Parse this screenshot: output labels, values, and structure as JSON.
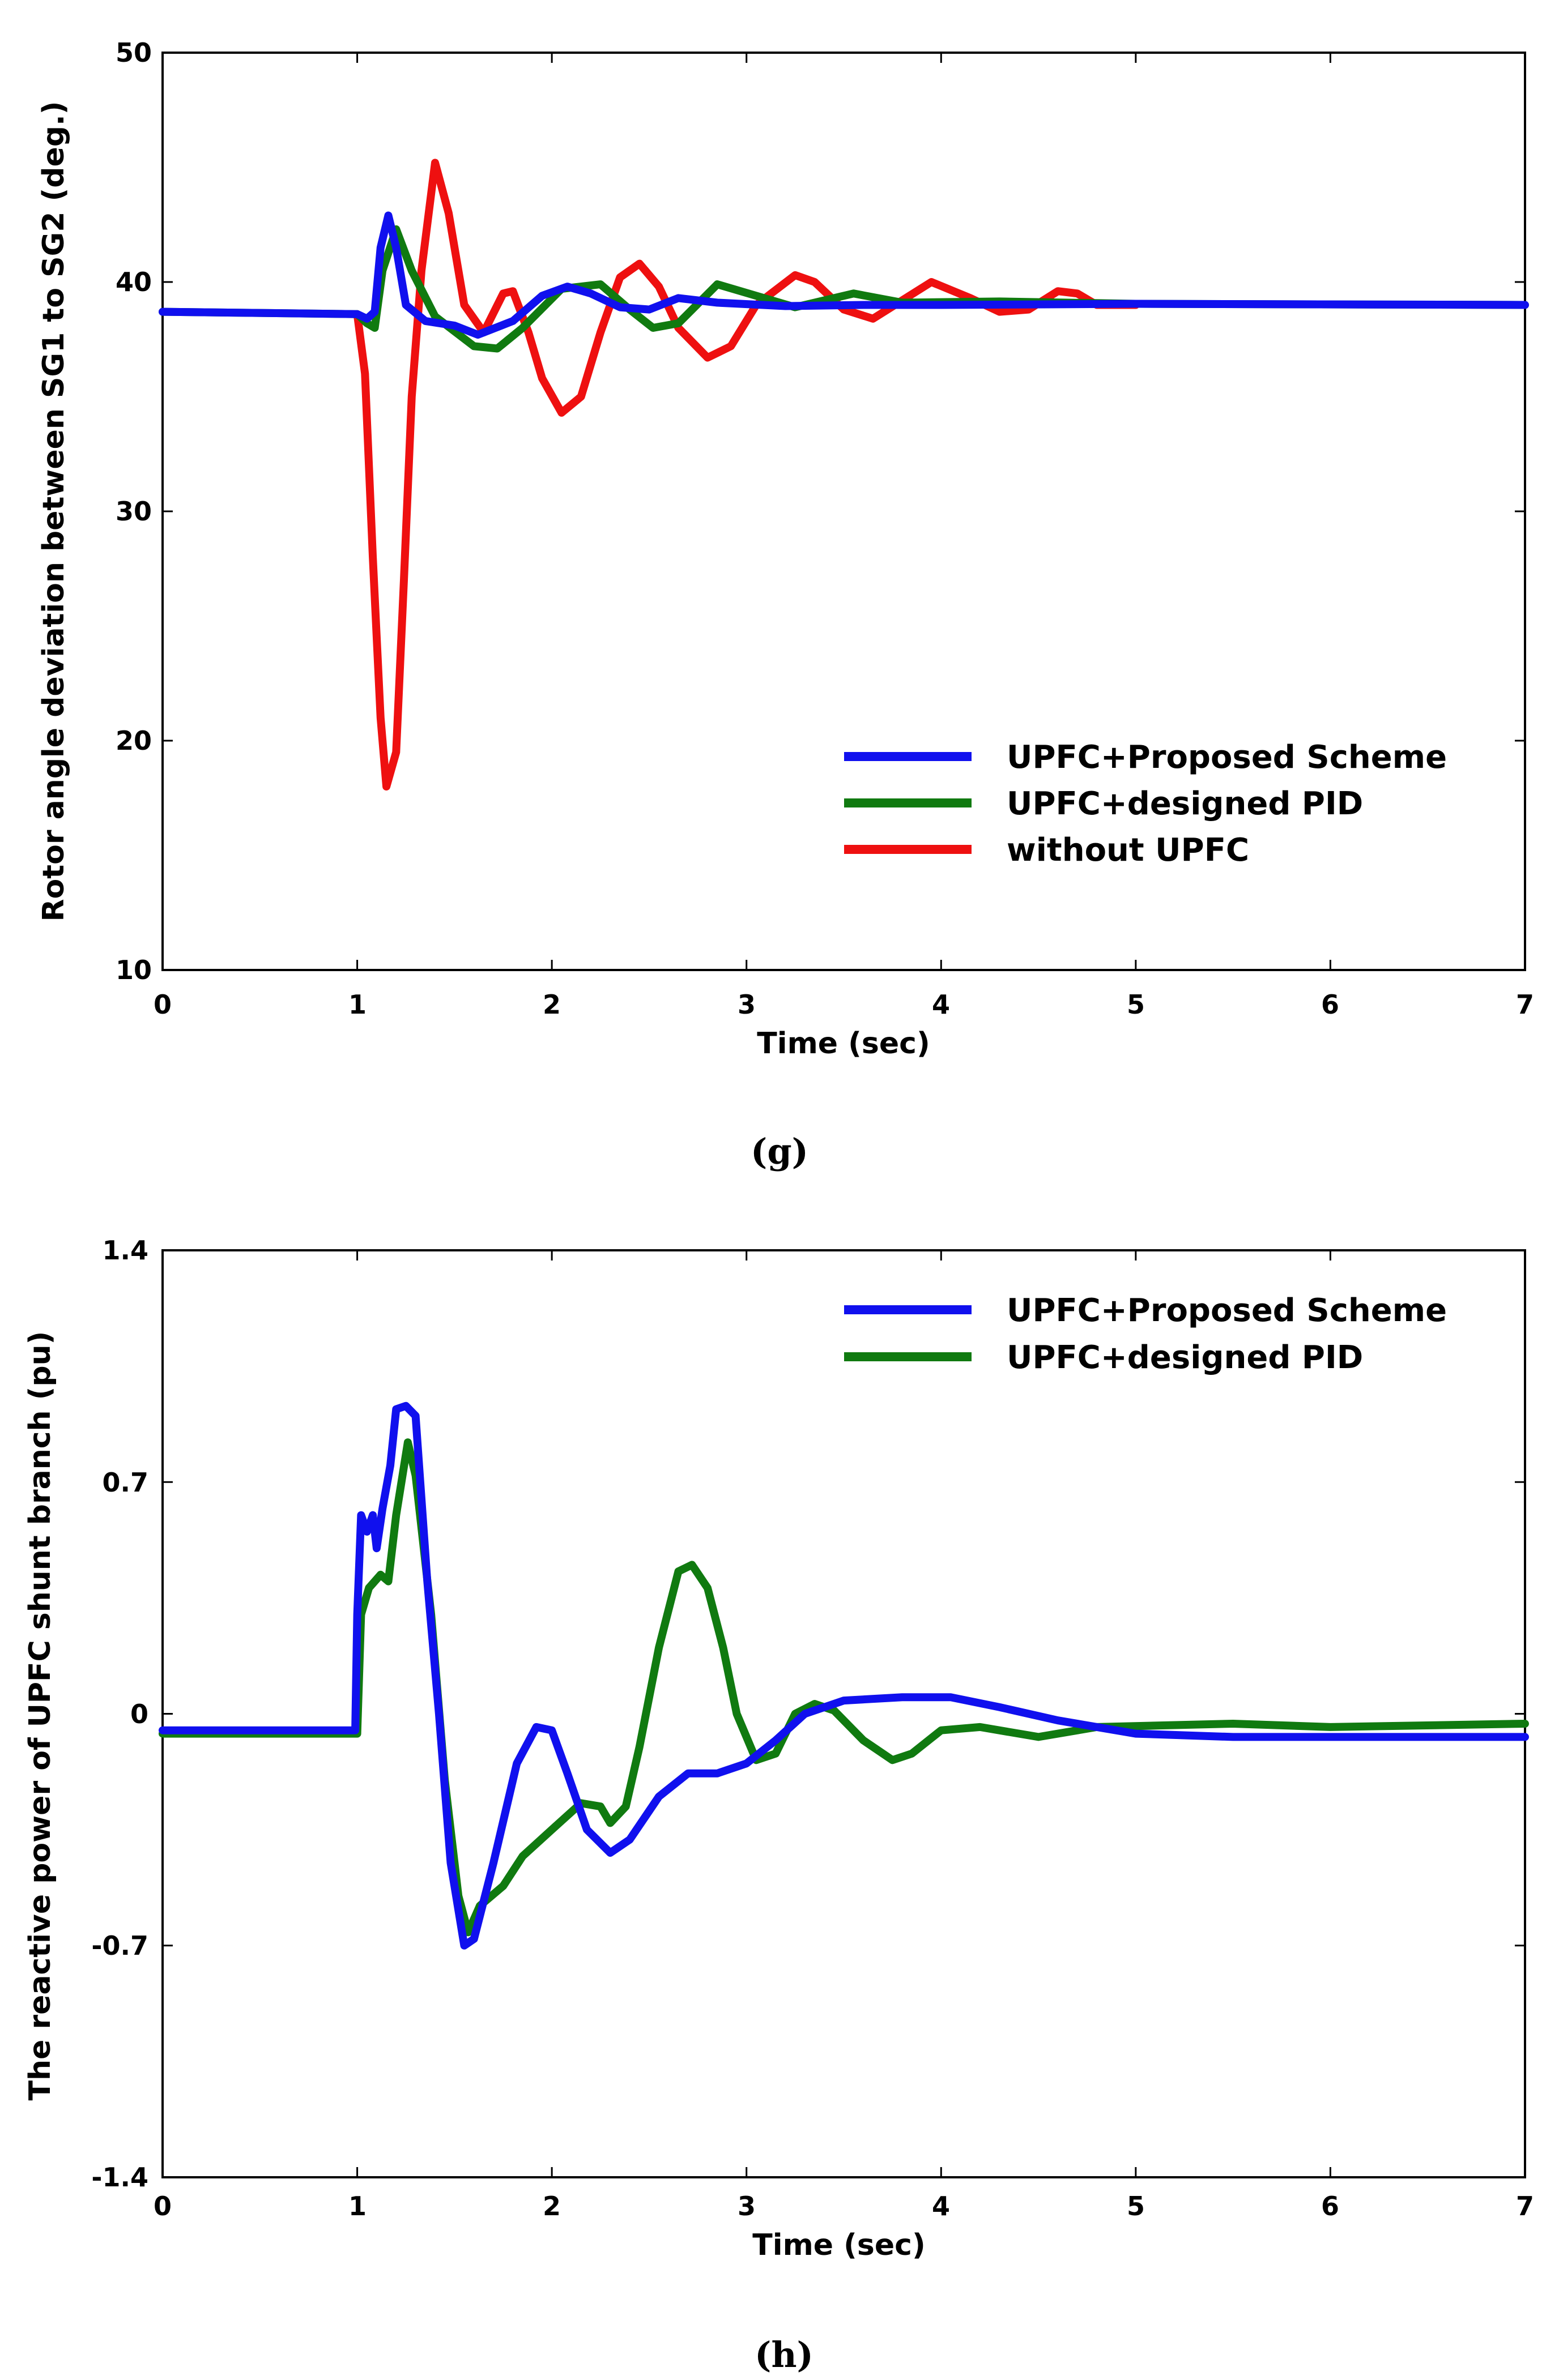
{
  "chart_data": [
    {
      "type": "line",
      "panel_label": "(g)",
      "xlabel": "Time (sec)",
      "ylabel": "Rotor angle deviation between SG1 to SG2 (deg.)",
      "xlim": [
        0,
        7
      ],
      "ylim": [
        10,
        50
      ],
      "xticks": [
        0,
        1,
        2,
        3,
        4,
        5,
        6,
        7
      ],
      "yticks": [
        10,
        20,
        30,
        40,
        50
      ],
      "legend_position": "lower-right",
      "series": [
        {
          "name": "UPFC+Proposed Scheme",
          "color": "#1010ee",
          "points": [
            [
              0,
              38.7
            ],
            [
              1.0,
              38.6
            ],
            [
              1.05,
              38.4
            ],
            [
              1.09,
              38.7
            ],
            [
              1.12,
              41.5
            ],
            [
              1.16,
              42.9
            ],
            [
              1.2,
              41.5
            ],
            [
              1.25,
              39.0
            ],
            [
              1.35,
              38.3
            ],
            [
              1.5,
              38.1
            ],
            [
              1.62,
              37.7
            ],
            [
              1.8,
              38.3
            ],
            [
              1.95,
              39.4
            ],
            [
              2.08,
              39.8
            ],
            [
              2.2,
              39.5
            ],
            [
              2.35,
              38.9
            ],
            [
              2.5,
              38.8
            ],
            [
              2.65,
              39.3
            ],
            [
              2.85,
              39.1
            ],
            [
              3.2,
              38.95
            ],
            [
              3.6,
              39.0
            ],
            [
              4.0,
              39.0
            ],
            [
              5.0,
              39.05
            ],
            [
              7.0,
              39.0
            ]
          ]
        },
        {
          "name": "UPFC+designed PID",
          "color": "#107a10",
          "points": [
            [
              0,
              38.7
            ],
            [
              1.0,
              38.6
            ],
            [
              1.05,
              38.2
            ],
            [
              1.09,
              38.0
            ],
            [
              1.13,
              40.5
            ],
            [
              1.2,
              42.3
            ],
            [
              1.28,
              40.5
            ],
            [
              1.4,
              38.5
            ],
            [
              1.6,
              37.2
            ],
            [
              1.72,
              37.1
            ],
            [
              1.85,
              38.0
            ],
            [
              2.05,
              39.7
            ],
            [
              2.25,
              39.9
            ],
            [
              2.4,
              38.8
            ],
            [
              2.52,
              38.0
            ],
            [
              2.65,
              38.2
            ],
            [
              2.85,
              39.9
            ],
            [
              3.05,
              39.4
            ],
            [
              3.25,
              38.9
            ],
            [
              3.55,
              39.5
            ],
            [
              3.8,
              39.1
            ],
            [
              4.3,
              39.15
            ],
            [
              5.0,
              39.05
            ],
            [
              7.0,
              39.0
            ]
          ]
        },
        {
          "name": "without UPFC",
          "color": "#ee1010",
          "points": [
            [
              1.0,
              38.6
            ],
            [
              1.04,
              36.0
            ],
            [
              1.08,
              28.0
            ],
            [
              1.12,
              21.0
            ],
            [
              1.15,
              18.0
            ],
            [
              1.2,
              19.5
            ],
            [
              1.24,
              27.0
            ],
            [
              1.28,
              35.0
            ],
            [
              1.33,
              40.5
            ],
            [
              1.4,
              45.2
            ],
            [
              1.47,
              43.0
            ],
            [
              1.55,
              39.0
            ],
            [
              1.65,
              37.8
            ],
            [
              1.75,
              39.5
            ],
            [
              1.8,
              39.6
            ],
            [
              1.88,
              37.8
            ],
            [
              1.95,
              35.8
            ],
            [
              2.05,
              34.3
            ],
            [
              2.15,
              35.0
            ],
            [
              2.25,
              37.8
            ],
            [
              2.35,
              40.2
            ],
            [
              2.45,
              40.8
            ],
            [
              2.55,
              39.8
            ],
            [
              2.65,
              38.0
            ],
            [
              2.8,
              36.7
            ],
            [
              2.92,
              37.2
            ],
            [
              3.05,
              39.0
            ],
            [
              3.25,
              40.3
            ],
            [
              3.35,
              40.0
            ],
            [
              3.5,
              38.8
            ],
            [
              3.65,
              38.4
            ],
            [
              3.8,
              39.2
            ],
            [
              3.95,
              40.0
            ],
            [
              4.15,
              39.3
            ],
            [
              4.3,
              38.7
            ],
            [
              4.45,
              38.8
            ],
            [
              4.6,
              39.6
            ],
            [
              4.7,
              39.5
            ],
            [
              4.8,
              39.0
            ],
            [
              5.0,
              39.0
            ]
          ]
        }
      ]
    },
    {
      "type": "line",
      "panel_label": "(h)",
      "xlabel": "Time (sec)",
      "ylabel": "The reactive power of UPFC shunt branch (pu)",
      "xlim": [
        0,
        7
      ],
      "ylim": [
        -1.4,
        1.4
      ],
      "xticks": [
        0,
        1,
        2,
        3,
        4,
        5,
        6,
        7
      ],
      "yticks": [
        -1.4,
        -0.7,
        0,
        0.7,
        1.4
      ],
      "legend_position": "top-right",
      "series": [
        {
          "name": "UPFC+Proposed Scheme",
          "color": "#1010ee",
          "points": [
            [
              0,
              -0.05
            ],
            [
              0.99,
              -0.05
            ],
            [
              1.0,
              0.3
            ],
            [
              1.02,
              0.6
            ],
            [
              1.05,
              0.55
            ],
            [
              1.08,
              0.6
            ],
            [
              1.1,
              0.5
            ],
            [
              1.13,
              0.62
            ],
            [
              1.17,
              0.75
            ],
            [
              1.2,
              0.92
            ],
            [
              1.25,
              0.93
            ],
            [
              1.3,
              0.9
            ],
            [
              1.36,
              0.4
            ],
            [
              1.42,
              0.0
            ],
            [
              1.48,
              -0.45
            ],
            [
              1.55,
              -0.7
            ],
            [
              1.6,
              -0.68
            ],
            [
              1.7,
              -0.45
            ],
            [
              1.82,
              -0.15
            ],
            [
              1.92,
              -0.04
            ],
            [
              2.0,
              -0.05
            ],
            [
              2.08,
              -0.18
            ],
            [
              2.18,
              -0.35
            ],
            [
              2.3,
              -0.42
            ],
            [
              2.4,
              -0.38
            ],
            [
              2.55,
              -0.25
            ],
            [
              2.7,
              -0.18
            ],
            [
              2.85,
              -0.18
            ],
            [
              3.0,
              -0.15
            ],
            [
              3.15,
              -0.08
            ],
            [
              3.3,
              0.0
            ],
            [
              3.5,
              0.04
            ],
            [
              3.8,
              0.05
            ],
            [
              4.05,
              0.05
            ],
            [
              4.3,
              0.02
            ],
            [
              4.6,
              -0.02
            ],
            [
              5.0,
              -0.06
            ],
            [
              5.5,
              -0.07
            ],
            [
              6.0,
              -0.07
            ],
            [
              7.0,
              -0.07
            ]
          ]
        },
        {
          "name": "UPFC+designed PID",
          "color": "#107a10",
          "points": [
            [
              0,
              -0.06
            ],
            [
              1.0,
              -0.06
            ],
            [
              1.02,
              0.3
            ],
            [
              1.06,
              0.38
            ],
            [
              1.12,
              0.42
            ],
            [
              1.16,
              0.4
            ],
            [
              1.2,
              0.6
            ],
            [
              1.26,
              0.82
            ],
            [
              1.3,
              0.72
            ],
            [
              1.38,
              0.3
            ],
            [
              1.45,
              -0.2
            ],
            [
              1.52,
              -0.55
            ],
            [
              1.57,
              -0.66
            ],
            [
              1.63,
              -0.58
            ],
            [
              1.75,
              -0.52
            ],
            [
              1.85,
              -0.43
            ],
            [
              2.0,
              -0.35
            ],
            [
              2.15,
              -0.27
            ],
            [
              2.25,
              -0.28
            ],
            [
              2.3,
              -0.33
            ],
            [
              2.38,
              -0.28
            ],
            [
              2.45,
              -0.1
            ],
            [
              2.55,
              0.2
            ],
            [
              2.65,
              0.43
            ],
            [
              2.72,
              0.45
            ],
            [
              2.8,
              0.38
            ],
            [
              2.88,
              0.2
            ],
            [
              2.95,
              0.0
            ],
            [
              3.05,
              -0.14
            ],
            [
              3.15,
              -0.12
            ],
            [
              3.25,
              0.0
            ],
            [
              3.35,
              0.03
            ],
            [
              3.45,
              0.01
            ],
            [
              3.6,
              -0.08
            ],
            [
              3.75,
              -0.14
            ],
            [
              3.85,
              -0.12
            ],
            [
              4.0,
              -0.05
            ],
            [
              4.2,
              -0.04
            ],
            [
              4.5,
              -0.07
            ],
            [
              4.8,
              -0.04
            ],
            [
              5.5,
              -0.03
            ],
            [
              6.0,
              -0.04
            ],
            [
              7.0,
              -0.03
            ]
          ]
        }
      ]
    }
  ]
}
